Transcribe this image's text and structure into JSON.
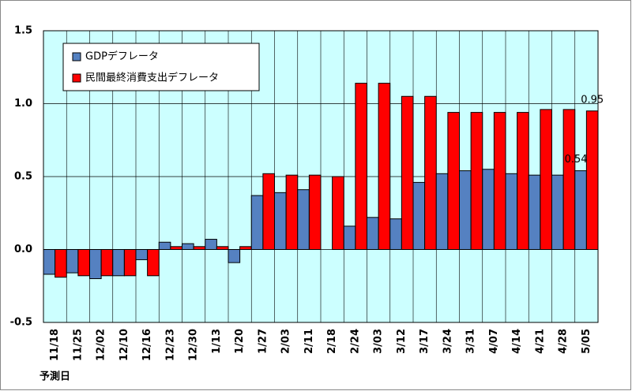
{
  "chart_data": {
    "type": "bar",
    "categories": [
      "11/18",
      "11/25",
      "12/02",
      "12/10",
      "12/16",
      "12/23",
      "12/30",
      "1/13",
      "1/20",
      "1/27",
      "2/03",
      "2/11",
      "2/18",
      "2/24",
      "3/03",
      "3/12",
      "3/17",
      "3/24",
      "3/31",
      "4/07",
      "4/14",
      "4/21",
      "4/28",
      "5/05"
    ],
    "series": [
      {
        "name": "GDPデフレータ",
        "color": "#5581c1",
        "values": [
          -0.17,
          -0.16,
          -0.2,
          -0.18,
          -0.07,
          0.05,
          0.04,
          0.07,
          -0.09,
          0.37,
          0.39,
          0.41,
          null,
          0.16,
          0.22,
          0.21,
          0.46,
          0.52,
          0.54,
          0.55,
          0.52,
          0.51,
          0.51,
          0.54
        ]
      },
      {
        "name": "民間最終消費支出デフレータ",
        "color": "#ff0000",
        "values": [
          -0.19,
          -0.18,
          -0.18,
          -0.18,
          -0.18,
          0.02,
          0.02,
          0.02,
          0.02,
          0.52,
          0.51,
          0.51,
          0.5,
          1.14,
          1.14,
          1.05,
          1.05,
          0.94,
          0.94,
          0.94,
          0.94,
          0.96,
          0.96,
          0.95
        ]
      }
    ],
    "x_label": "予測日",
    "ylim": [
      -0.5,
      1.5
    ],
    "yticks": [
      {
        "value": 1.5,
        "label": "1.5"
      },
      {
        "value": 1.0,
        "label": "1.0"
      },
      {
        "value": 0.5,
        "label": "0.5"
      },
      {
        "value": 0.0,
        "label": "0.0"
      },
      -0.5
    ],
    "grid": true,
    "legend": "upper-left"
  }
}
